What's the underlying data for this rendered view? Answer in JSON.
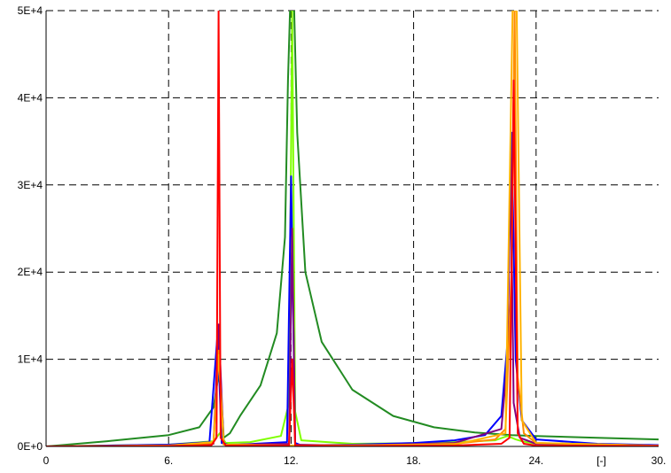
{
  "chart_data": {
    "type": "line",
    "title": "",
    "xlabel": "",
    "ylabel": "",
    "x_unit_label": "[-]",
    "xlim": [
      0,
      30
    ],
    "ylim": [
      0,
      50000
    ],
    "grid": true,
    "legend": "none",
    "x_ticks": [
      {
        "value": 0,
        "label": "0"
      },
      {
        "value": 6,
        "label": "6."
      },
      {
        "value": 12,
        "label": "12."
      },
      {
        "value": 18,
        "label": "18."
      },
      {
        "value": 24,
        "label": "24."
      },
      {
        "value": 30,
        "label": "30."
      }
    ],
    "y_ticks": [
      {
        "value": 0,
        "label": "0E+0"
      },
      {
        "value": 10000,
        "label": "1E+4"
      },
      {
        "value": 20000,
        "label": "2E+4"
      },
      {
        "value": 30000,
        "label": "3E+4"
      },
      {
        "value": 40000,
        "label": "4E+4"
      },
      {
        "value": 50000,
        "label": "5E+4"
      }
    ],
    "series": [
      {
        "color": "#228B22",
        "x": [
          0,
          3,
          6,
          7.5,
          8.2,
          8.5,
          8.7,
          9.0,
          9.5,
          10.5,
          11.3,
          11.7,
          11.85,
          11.95,
          12.05,
          12.15,
          12.3,
          12.7,
          13.5,
          15,
          17,
          19,
          21,
          22.8,
          24,
          27,
          30
        ],
        "y": [
          0,
          600,
          1300,
          2200,
          4500,
          9000,
          1000,
          1500,
          3500,
          7000,
          13000,
          24000,
          42000,
          50000,
          50000,
          50000,
          36000,
          20000,
          12000,
          6500,
          3500,
          2200,
          1600,
          1300,
          1200,
          1000,
          800
        ]
      },
      {
        "color": "#7FFF00",
        "x": [
          0,
          6,
          8.2,
          8.5,
          8.8,
          10,
          11.5,
          11.9,
          12.05,
          12.2,
          12.5,
          15,
          19,
          22,
          22.6,
          23.0,
          23.3,
          24,
          27,
          30
        ],
        "y": [
          0,
          200,
          600,
          1500,
          400,
          500,
          1200,
          5000,
          50000,
          4000,
          700,
          300,
          400,
          700,
          1200,
          800,
          600,
          300,
          150,
          100
        ]
      },
      {
        "color": "#0000FF",
        "x": [
          0,
          6,
          8.0,
          8.4,
          8.6,
          9.0,
          11.8,
          12.0,
          12.2,
          12.5,
          15,
          18,
          20,
          21.5,
          22.3,
          22.6,
          22.8,
          23.0,
          23.3,
          24,
          27,
          30
        ],
        "y": [
          0,
          200,
          500,
          13000,
          400,
          150,
          500,
          31000,
          400,
          120,
          200,
          400,
          700,
          1300,
          3500,
          12000,
          36000,
          10000,
          3000,
          800,
          300,
          150
        ]
      },
      {
        "color": "#800080",
        "x": [
          0,
          6,
          8.2,
          8.45,
          8.7,
          11.9,
          12.05,
          12.2,
          15,
          20,
          22.3,
          22.6,
          22.75,
          22.9,
          23.2,
          24,
          30
        ],
        "y": [
          0,
          100,
          300,
          14000,
          200,
          300,
          25000,
          200,
          100,
          400,
          2000,
          10000,
          34000,
          5000,
          1000,
          300,
          80
        ]
      },
      {
        "color": "#FF8C00",
        "x": [
          0,
          6,
          8.2,
          8.45,
          8.7,
          12,
          15,
          20,
          22,
          22.5,
          22.8,
          22.95,
          23.1,
          23.4,
          24,
          30
        ],
        "y": [
          0,
          100,
          400,
          11000,
          200,
          100,
          100,
          300,
          800,
          2000,
          20000,
          50000,
          8000,
          1500,
          400,
          80
        ]
      },
      {
        "color": "#FFB300",
        "x": [
          0,
          6,
          8.2,
          8.45,
          8.7,
          12,
          20,
          22.5,
          22.85,
          22.95,
          23.05,
          23.3,
          24,
          30
        ],
        "y": [
          0,
          100,
          500,
          10500,
          200,
          100,
          200,
          1500,
          50000,
          50000,
          50000,
          3000,
          400,
          80
        ]
      },
      {
        "color": "#FF0000",
        "x": [
          0,
          6,
          8.1,
          8.35,
          8.45,
          8.55,
          8.8,
          11.9,
          12.05,
          12.2,
          15,
          20,
          22.3,
          22.7,
          22.9,
          23.1,
          23.4,
          24,
          30
        ],
        "y": [
          0,
          50,
          150,
          1000,
          50000,
          1000,
          100,
          100,
          10000,
          100,
          50,
          100,
          300,
          1000,
          42000,
          1500,
          300,
          100,
          50
        ]
      }
    ]
  }
}
